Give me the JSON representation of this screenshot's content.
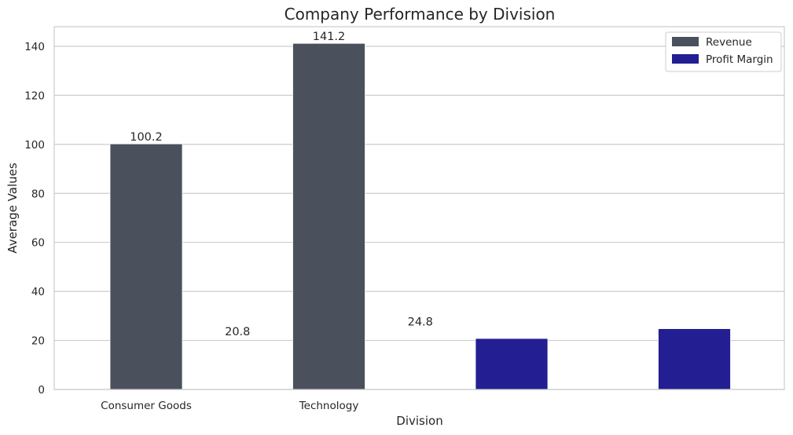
{
  "chart_data": {
    "type": "bar",
    "title": "Company Performance by Division",
    "xlabel": "Division",
    "ylabel": "Average Values",
    "ylim": [
      0,
      148
    ],
    "yticks": [
      0,
      20,
      40,
      60,
      80,
      100,
      120,
      140
    ],
    "categories": [
      "Consumer Goods",
      "Technology"
    ],
    "grid": true,
    "legend_placement": "top-right",
    "colors": {
      "Revenue": "#4a505c",
      "Profit Margin": "#231e91"
    },
    "series": [
      {
        "name": "Revenue",
        "values": [
          100.2,
          141.2
        ]
      },
      {
        "name": "Profit Margin",
        "values": [
          20.8,
          24.8
        ]
      }
    ],
    "bars": [
      {
        "series": "Revenue",
        "slot": 0,
        "value": 100.2
      },
      {
        "series": "Revenue",
        "slot": 1,
        "value": 141.2
      },
      {
        "series": "Profit Margin",
        "slot": 2,
        "value": 20.8
      },
      {
        "series": "Profit Margin",
        "slot": 3,
        "value": 24.8
      }
    ],
    "data_labels": [
      {
        "text": "100.2",
        "slot": 0,
        "value": 100.2
      },
      {
        "text": "141.2",
        "slot": 1,
        "value": 141.2
      },
      {
        "text": "20.8",
        "slot": 0.5,
        "value": 20.8
      },
      {
        "text": "24.8",
        "slot": 1.5,
        "value": 24.8
      }
    ]
  }
}
